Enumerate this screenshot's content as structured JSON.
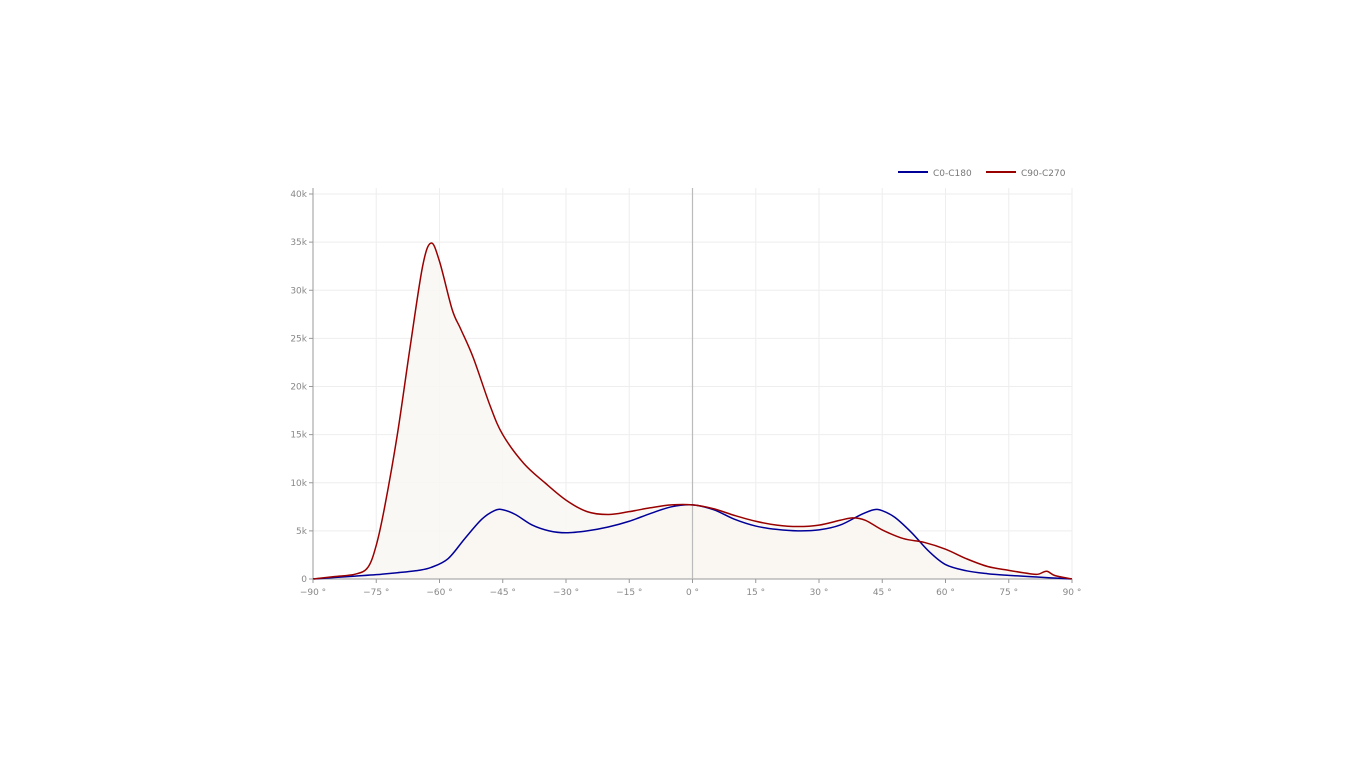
{
  "chart_data": {
    "type": "line",
    "title": "",
    "xlabel": "",
    "ylabel": "",
    "xlim": [
      -90,
      90
    ],
    "ylim": [
      0,
      40000
    ],
    "grid": true,
    "legend_position": "top-right",
    "fill_color": "#f9f7f2",
    "x_ticks": [
      -90,
      -75,
      -60,
      -45,
      -30,
      -15,
      0,
      15,
      30,
      45,
      60,
      75,
      90
    ],
    "x_tick_labels": [
      "−90 °",
      "−75 °",
      "−60 °",
      "−45 °",
      "−30 °",
      "−15 °",
      "0 °",
      "15 °",
      "30 °",
      "45 °",
      "60 °",
      "75 °",
      "90 °"
    ],
    "y_ticks": [
      0,
      5000,
      10000,
      15000,
      20000,
      25000,
      30000,
      35000,
      40000
    ],
    "y_tick_labels": [
      "0",
      "5k",
      "10k",
      "15k",
      "20k",
      "25k",
      "30k",
      "35k",
      "40k"
    ],
    "series": [
      {
        "name": "C0-C180",
        "color": "#000099",
        "points": [
          [
            -90,
            0
          ],
          [
            -85,
            150
          ],
          [
            -80,
            300
          ],
          [
            -75,
            450
          ],
          [
            -70,
            650
          ],
          [
            -65,
            900
          ],
          [
            -62,
            1200
          ],
          [
            -58,
            2100
          ],
          [
            -54,
            4200
          ],
          [
            -50,
            6200
          ],
          [
            -47,
            7100
          ],
          [
            -45,
            7200
          ],
          [
            -42,
            6700
          ],
          [
            -38,
            5600
          ],
          [
            -34,
            5000
          ],
          [
            -30,
            4800
          ],
          [
            -25,
            5000
          ],
          [
            -20,
            5400
          ],
          [
            -15,
            6000
          ],
          [
            -10,
            6800
          ],
          [
            -5,
            7500
          ],
          [
            0,
            7700
          ],
          [
            5,
            7200
          ],
          [
            10,
            6200
          ],
          [
            15,
            5500
          ],
          [
            20,
            5150
          ],
          [
            25,
            5000
          ],
          [
            30,
            5100
          ],
          [
            35,
            5600
          ],
          [
            40,
            6700
          ],
          [
            43,
            7200
          ],
          [
            45,
            7100
          ],
          [
            48,
            6400
          ],
          [
            52,
            4800
          ],
          [
            56,
            2900
          ],
          [
            60,
            1500
          ],
          [
            65,
            850
          ],
          [
            70,
            550
          ],
          [
            75,
            380
          ],
          [
            80,
            250
          ],
          [
            85,
            120
          ],
          [
            90,
            0
          ]
        ]
      },
      {
        "name": "C90-C270",
        "color": "#990000",
        "points": [
          [
            -90,
            0
          ],
          [
            -85,
            250
          ],
          [
            -80,
            500
          ],
          [
            -77,
            1200
          ],
          [
            -75,
            3500
          ],
          [
            -73,
            7500
          ],
          [
            -70,
            15000
          ],
          [
            -67,
            24000
          ],
          [
            -64,
            32500
          ],
          [
            -62,
            34900
          ],
          [
            -60,
            33000
          ],
          [
            -57,
            28000
          ],
          [
            -55,
            26000
          ],
          [
            -52,
            23000
          ],
          [
            -48,
            18000
          ],
          [
            -45,
            15000
          ],
          [
            -40,
            12000
          ],
          [
            -35,
            10000
          ],
          [
            -30,
            8200
          ],
          [
            -25,
            7000
          ],
          [
            -20,
            6700
          ],
          [
            -15,
            7000
          ],
          [
            -10,
            7400
          ],
          [
            -5,
            7700
          ],
          [
            0,
            7700
          ],
          [
            5,
            7300
          ],
          [
            10,
            6600
          ],
          [
            15,
            6000
          ],
          [
            20,
            5600
          ],
          [
            25,
            5450
          ],
          [
            30,
            5600
          ],
          [
            35,
            6100
          ],
          [
            38,
            6350
          ],
          [
            41,
            6100
          ],
          [
            45,
            5100
          ],
          [
            50,
            4200
          ],
          [
            55,
            3800
          ],
          [
            60,
            3100
          ],
          [
            65,
            2100
          ],
          [
            70,
            1300
          ],
          [
            75,
            900
          ],
          [
            80,
            550
          ],
          [
            82,
            500
          ],
          [
            84,
            800
          ],
          [
            86,
            350
          ],
          [
            90,
            0
          ]
        ]
      }
    ]
  }
}
